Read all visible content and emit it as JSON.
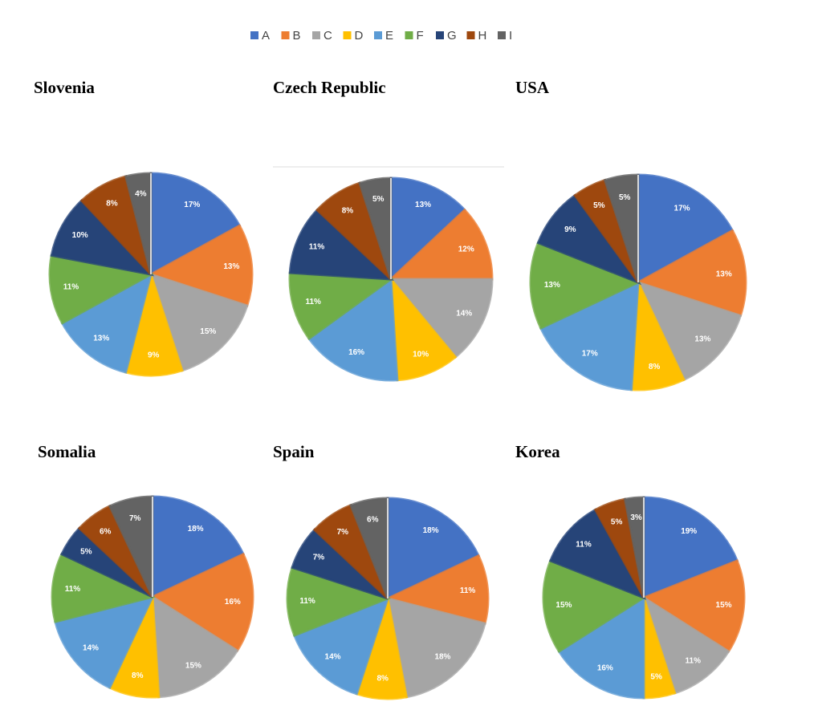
{
  "chart_data": [
    {
      "type": "pie",
      "title": "Slovenia",
      "categories": [
        "A",
        "B",
        "C",
        "D",
        "E",
        "F",
        "G",
        "H",
        "I"
      ],
      "values": [
        17,
        13,
        15,
        9,
        13,
        11,
        10,
        8,
        4
      ],
      "value_labels": [
        "17%",
        "13%",
        "15%",
        "9%",
        "13%",
        "11%",
        "10%",
        "8%",
        "4%"
      ],
      "colors": [
        "#4472c4",
        "#ed7d31",
        "#a5a5a5",
        "#ffc000",
        "#5b9bd5",
        "#70ad47",
        "#264478",
        "#9e480e",
        "#636363"
      ]
    },
    {
      "type": "pie",
      "title": "Czech Republic",
      "categories": [
        "A",
        "B",
        "C",
        "D",
        "E",
        "F",
        "G",
        "H",
        "I"
      ],
      "values": [
        13,
        12,
        14,
        10,
        16,
        11,
        11,
        8,
        5
      ],
      "value_labels": [
        "13%",
        "12%",
        "14%",
        "10%",
        "16%",
        "11%",
        "11%",
        "8%",
        "5%"
      ],
      "colors": [
        "#4472c4",
        "#ed7d31",
        "#a5a5a5",
        "#ffc000",
        "#5b9bd5",
        "#70ad47",
        "#264478",
        "#9e480e",
        "#636363"
      ]
    },
    {
      "type": "pie",
      "title": "USA",
      "categories": [
        "A",
        "B",
        "C",
        "D",
        "E",
        "F",
        "G",
        "H",
        "I"
      ],
      "values": [
        17,
        13,
        13,
        8,
        17,
        13,
        9,
        5,
        5
      ],
      "value_labels": [
        "17%",
        "13%",
        "13%",
        "8%",
        "17%",
        "13%",
        "9%",
        "5%",
        "5%"
      ],
      "colors": [
        "#4472c4",
        "#ed7d31",
        "#a5a5a5",
        "#ffc000",
        "#5b9bd5",
        "#70ad47",
        "#264478",
        "#9e480e",
        "#636363"
      ]
    },
    {
      "type": "pie",
      "title": "Somalia",
      "categories": [
        "A",
        "B",
        "C",
        "D",
        "E",
        "F",
        "G",
        "H",
        "I"
      ],
      "values": [
        18,
        16,
        15,
        8,
        14,
        11,
        5,
        6,
        7
      ],
      "value_labels": [
        "18%",
        "16%",
        "15%",
        "8%",
        "14%",
        "11%",
        "5%",
        "6%",
        "7%"
      ],
      "colors": [
        "#4472c4",
        "#ed7d31",
        "#a5a5a5",
        "#ffc000",
        "#5b9bd5",
        "#70ad47",
        "#264478",
        "#9e480e",
        "#636363"
      ]
    },
    {
      "type": "pie",
      "title": "Spain",
      "categories": [
        "A",
        "B",
        "C",
        "D",
        "E",
        "F",
        "G",
        "H",
        "I"
      ],
      "values": [
        18,
        11,
        18,
        8,
        14,
        11,
        7,
        7,
        6
      ],
      "value_labels": [
        "18%",
        "11%",
        "18%",
        "8%",
        "14%",
        "11%",
        "7%",
        "7%",
        "6%"
      ],
      "colors": [
        "#4472c4",
        "#ed7d31",
        "#a5a5a5",
        "#ffc000",
        "#5b9bd5",
        "#70ad47",
        "#264478",
        "#9e480e",
        "#636363"
      ]
    },
    {
      "type": "pie",
      "title": "Korea",
      "categories": [
        "A",
        "B",
        "C",
        "D",
        "E",
        "F",
        "G",
        "H",
        "I"
      ],
      "values": [
        19,
        15,
        11,
        5,
        16,
        15,
        11,
        5,
        3
      ],
      "value_labels": [
        "19%",
        "15%",
        "11%",
        "5%",
        "16%",
        "15%",
        "11%",
        "5%",
        "3%"
      ],
      "colors": [
        "#4472c4",
        "#ed7d31",
        "#a5a5a5",
        "#ffc000",
        "#5b9bd5",
        "#70ad47",
        "#264478",
        "#9e480e",
        "#636363"
      ]
    }
  ]
}
